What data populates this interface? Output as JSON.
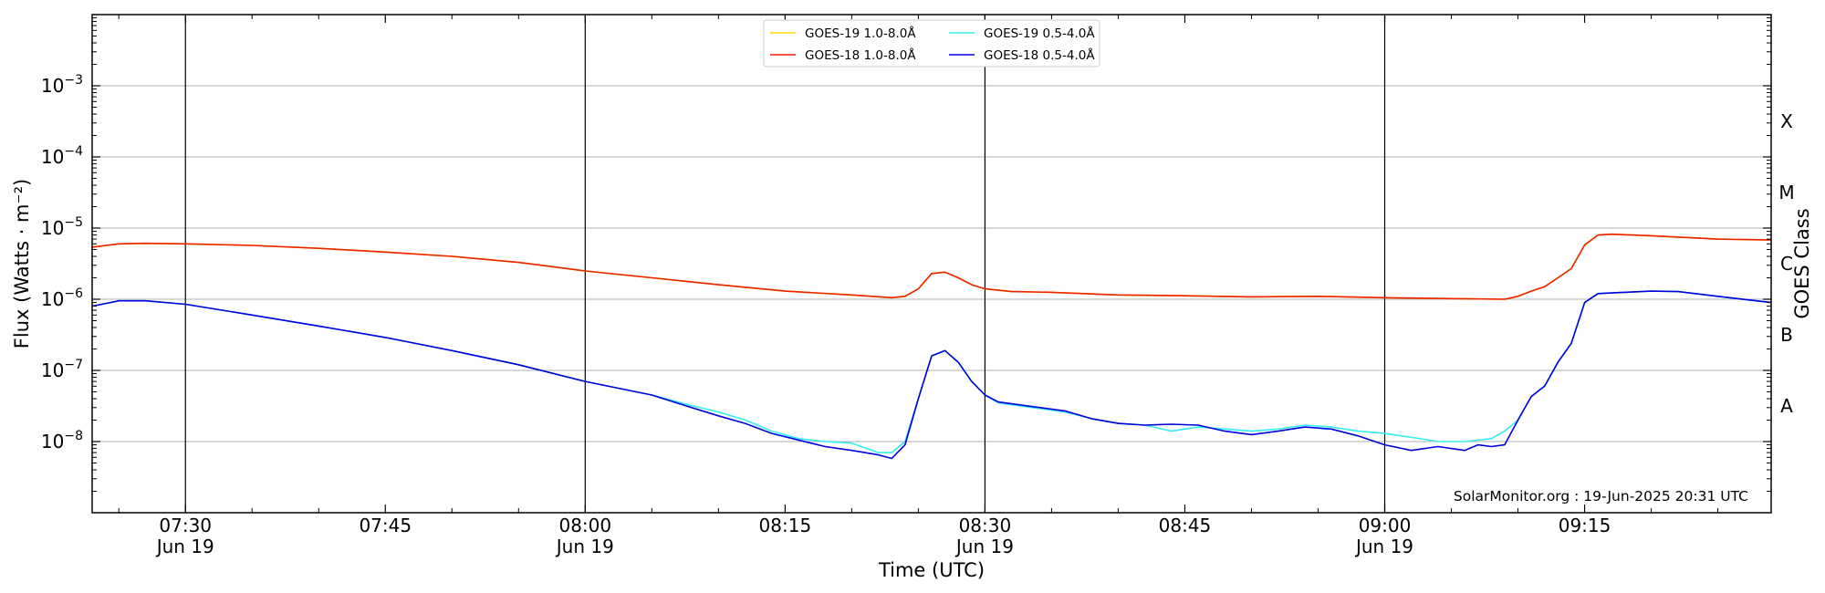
{
  "chart_data": {
    "type": "line",
    "xlabel": "Time (UTC)",
    "ylabel": "Flux (Watts · m⁻²)",
    "ylabel_right": "GOES Class",
    "y_scale": "log",
    "ylim": [
      1e-09,
      0.01
    ],
    "xlim": [
      "2025-06-19T07:23",
      "2025-06-19T09:29"
    ],
    "grid": "horizontal",
    "legend_position": "top-center",
    "credit": "SolarMonitor.org : 19-Jun-2025 20:31 UTC",
    "x_ticks": [
      {
        "time": "07:30",
        "label": "07:30",
        "date": "Jun 19"
      },
      {
        "time": "07:45",
        "label": "07:45",
        "date": ""
      },
      {
        "time": "08:00",
        "label": "08:00",
        "date": "Jun 19"
      },
      {
        "time": "08:15",
        "label": "08:15",
        "date": ""
      },
      {
        "time": "08:30",
        "label": "08:30",
        "date": "Jun 19"
      },
      {
        "time": "08:45",
        "label": "08:45",
        "date": ""
      },
      {
        "time": "09:00",
        "label": "09:00",
        "date": "Jun 19"
      },
      {
        "time": "09:15",
        "label": "09:15",
        "date": ""
      }
    ],
    "y_ticks": [
      {
        "value": 1e-08,
        "base": "10",
        "exp": "−8"
      },
      {
        "value": 1e-07,
        "base": "10",
        "exp": "−7"
      },
      {
        "value": 1e-06,
        "base": "10",
        "exp": "−6"
      },
      {
        "value": 1e-05,
        "base": "10",
        "exp": "−5"
      },
      {
        "value": 0.0001,
        "base": "10",
        "exp": "−4"
      },
      {
        "value": 0.001,
        "base": "10",
        "exp": "−3"
      }
    ],
    "goes_classes": [
      {
        "label": "A",
        "value": 3.16e-08
      },
      {
        "label": "B",
        "value": 3.16e-07
      },
      {
        "label": "C",
        "value": 3.16e-06
      },
      {
        "label": "M",
        "value": 3.16e-05
      },
      {
        "label": "X",
        "value": 0.000316
      }
    ],
    "legend": [
      {
        "label": "GOES-19 1.0-8.0Å",
        "color": "#ffd700"
      },
      {
        "label": "GOES-18 1.0-8.0Å",
        "color": "#ee2200"
      },
      {
        "label": "GOES-19 0.5-4.0Å",
        "color": "#33eeee"
      },
      {
        "label": "GOES-18 0.5-4.0Å",
        "color": "#0000dd"
      }
    ],
    "series": [
      {
        "name": "GOES-19 1.0-8.0Å",
        "color": "#ffd700",
        "points": [
          [
            "07:23",
            5.4e-06
          ],
          [
            "07:25",
            6e-06
          ],
          [
            "07:27",
            6.1e-06
          ],
          [
            "07:30",
            6e-06
          ],
          [
            "07:35",
            5.7e-06
          ],
          [
            "07:40",
            5.2e-06
          ],
          [
            "07:45",
            4.6e-06
          ],
          [
            "07:50",
            4e-06
          ],
          [
            "07:55",
            3.3e-06
          ],
          [
            "08:00",
            2.5e-06
          ],
          [
            "08:05",
            2e-06
          ],
          [
            "08:10",
            1.6e-06
          ],
          [
            "08:15",
            1.3e-06
          ],
          [
            "08:20",
            1.15e-06
          ],
          [
            "08:23",
            1.05e-06
          ],
          [
            "08:24",
            1.1e-06
          ],
          [
            "08:25",
            1.4e-06
          ],
          [
            "08:26",
            2.3e-06
          ],
          [
            "08:27",
            2.4e-06
          ],
          [
            "08:28",
            2e-06
          ],
          [
            "08:29",
            1.6e-06
          ],
          [
            "08:30",
            1.4e-06
          ],
          [
            "08:32",
            1.28e-06
          ],
          [
            "08:35",
            1.25e-06
          ],
          [
            "08:40",
            1.15e-06
          ],
          [
            "08:45",
            1.12e-06
          ],
          [
            "08:50",
            1.08e-06
          ],
          [
            "08:55",
            1.1e-06
          ],
          [
            "09:00",
            1.05e-06
          ],
          [
            "09:05",
            1.02e-06
          ],
          [
            "09:09",
            1e-06
          ],
          [
            "09:10",
            1.1e-06
          ],
          [
            "09:11",
            1.3e-06
          ],
          [
            "09:12",
            1.5e-06
          ],
          [
            "09:13",
            2e-06
          ],
          [
            "09:14",
            2.7e-06
          ],
          [
            "09:15",
            5.8e-06
          ],
          [
            "09:16",
            8e-06
          ],
          [
            "09:17",
            8.2e-06
          ],
          [
            "09:20",
            7.8e-06
          ],
          [
            "09:25",
            7e-06
          ],
          [
            "09:29",
            6.8e-06
          ]
        ]
      },
      {
        "name": "GOES-18 1.0-8.0Å",
        "color": "#ee2200",
        "points": [
          [
            "07:23",
            5.4e-06
          ],
          [
            "07:25",
            6e-06
          ],
          [
            "07:27",
            6.1e-06
          ],
          [
            "07:30",
            6e-06
          ],
          [
            "07:35",
            5.7e-06
          ],
          [
            "07:40",
            5.2e-06
          ],
          [
            "07:45",
            4.6e-06
          ],
          [
            "07:50",
            4e-06
          ],
          [
            "07:55",
            3.3e-06
          ],
          [
            "08:00",
            2.5e-06
          ],
          [
            "08:05",
            2e-06
          ],
          [
            "08:10",
            1.6e-06
          ],
          [
            "08:15",
            1.3e-06
          ],
          [
            "08:20",
            1.15e-06
          ],
          [
            "08:23",
            1.05e-06
          ],
          [
            "08:24",
            1.1e-06
          ],
          [
            "08:25",
            1.4e-06
          ],
          [
            "08:26",
            2.3e-06
          ],
          [
            "08:27",
            2.4e-06
          ],
          [
            "08:28",
            2e-06
          ],
          [
            "08:29",
            1.6e-06
          ],
          [
            "08:30",
            1.4e-06
          ],
          [
            "08:32",
            1.28e-06
          ],
          [
            "08:35",
            1.25e-06
          ],
          [
            "08:40",
            1.15e-06
          ],
          [
            "08:45",
            1.12e-06
          ],
          [
            "08:50",
            1.08e-06
          ],
          [
            "08:55",
            1.1e-06
          ],
          [
            "09:00",
            1.05e-06
          ],
          [
            "09:05",
            1.02e-06
          ],
          [
            "09:09",
            1e-06
          ],
          [
            "09:10",
            1.1e-06
          ],
          [
            "09:11",
            1.3e-06
          ],
          [
            "09:12",
            1.5e-06
          ],
          [
            "09:13",
            2e-06
          ],
          [
            "09:14",
            2.7e-06
          ],
          [
            "09:15",
            5.8e-06
          ],
          [
            "09:16",
            8e-06
          ],
          [
            "09:17",
            8.2e-06
          ],
          [
            "09:20",
            7.8e-06
          ],
          [
            "09:25",
            7e-06
          ],
          [
            "09:29",
            6.8e-06
          ]
        ]
      },
      {
        "name": "GOES-19 0.5-4.0Å",
        "color": "#33eeee",
        "points": [
          [
            "07:23",
            8e-07
          ],
          [
            "07:25",
            9.5e-07
          ],
          [
            "07:27",
            9.5e-07
          ],
          [
            "07:30",
            8.5e-07
          ],
          [
            "07:35",
            6e-07
          ],
          [
            "07:40",
            4.2e-07
          ],
          [
            "07:45",
            2.9e-07
          ],
          [
            "07:50",
            1.9e-07
          ],
          [
            "07:55",
            1.2e-07
          ],
          [
            "08:00",
            7e-08
          ],
          [
            "08:05",
            4.5e-08
          ],
          [
            "08:08",
            3.2e-08
          ],
          [
            "08:10",
            2.6e-08
          ],
          [
            "08:12",
            2e-08
          ],
          [
            "08:14",
            1.4e-08
          ],
          [
            "08:16",
            1.1e-08
          ],
          [
            "08:18",
            1e-08
          ],
          [
            "08:20",
            9.5e-09
          ],
          [
            "08:22",
            7e-09
          ],
          [
            "08:23",
            7e-09
          ],
          [
            "08:24",
            1e-08
          ],
          [
            "08:25",
            4e-08
          ],
          [
            "08:26",
            1.6e-07
          ],
          [
            "08:27",
            1.9e-07
          ],
          [
            "08:28",
            1.3e-07
          ],
          [
            "08:29",
            7e-08
          ],
          [
            "08:30",
            4.5e-08
          ],
          [
            "08:31",
            3.5e-08
          ],
          [
            "08:33",
            3.1e-08
          ],
          [
            "08:36",
            2.6e-08
          ],
          [
            "08:38",
            2.1e-08
          ],
          [
            "08:40",
            1.8e-08
          ],
          [
            "08:42",
            1.7e-08
          ],
          [
            "08:44",
            1.4e-08
          ],
          [
            "08:46",
            1.6e-08
          ],
          [
            "08:48",
            1.5e-08
          ],
          [
            "08:50",
            1.4e-08
          ],
          [
            "08:52",
            1.5e-08
          ],
          [
            "08:54",
            1.7e-08
          ],
          [
            "08:56",
            1.6e-08
          ],
          [
            "08:58",
            1.4e-08
          ],
          [
            "09:00",
            1.3e-08
          ],
          [
            "09:02",
            1.15e-08
          ],
          [
            "09:04",
            1e-08
          ],
          [
            "09:06",
            1e-08
          ],
          [
            "09:08",
            1.1e-08
          ],
          [
            "09:09",
            1.4e-08
          ],
          [
            "09:10",
            2e-08
          ],
          [
            "09:11",
            4.3e-08
          ],
          [
            "09:12",
            6e-08
          ],
          [
            "09:13",
            1.3e-07
          ],
          [
            "09:14",
            2.4e-07
          ],
          [
            "09:15",
            9e-07
          ],
          [
            "09:16",
            1.2e-06
          ],
          [
            "09:18",
            1.25e-06
          ],
          [
            "09:20",
            1.3e-06
          ],
          [
            "09:22",
            1.28e-06
          ],
          [
            "09:25",
            1.1e-06
          ],
          [
            "09:29",
            9e-07
          ]
        ]
      },
      {
        "name": "GOES-18 0.5-4.0Å",
        "color": "#0000dd",
        "points": [
          [
            "07:23",
            8e-07
          ],
          [
            "07:25",
            9.5e-07
          ],
          [
            "07:27",
            9.5e-07
          ],
          [
            "07:30",
            8.5e-07
          ],
          [
            "07:35",
            6e-07
          ],
          [
            "07:40",
            4.2e-07
          ],
          [
            "07:45",
            2.9e-07
          ],
          [
            "07:50",
            1.9e-07
          ],
          [
            "07:55",
            1.2e-07
          ],
          [
            "08:00",
            7e-08
          ],
          [
            "08:05",
            4.5e-08
          ],
          [
            "08:08",
            3e-08
          ],
          [
            "08:10",
            2.3e-08
          ],
          [
            "08:12",
            1.8e-08
          ],
          [
            "08:14",
            1.3e-08
          ],
          [
            "08:16",
            1.05e-08
          ],
          [
            "08:18",
            8.5e-09
          ],
          [
            "08:20",
            7.5e-09
          ],
          [
            "08:22",
            6.5e-09
          ],
          [
            "08:23",
            5.8e-09
          ],
          [
            "08:24",
            9e-09
          ],
          [
            "08:25",
            4e-08
          ],
          [
            "08:26",
            1.6e-07
          ],
          [
            "08:27",
            1.9e-07
          ],
          [
            "08:28",
            1.3e-07
          ],
          [
            "08:29",
            7e-08
          ],
          [
            "08:30",
            4.5e-08
          ],
          [
            "08:31",
            3.6e-08
          ],
          [
            "08:33",
            3.2e-08
          ],
          [
            "08:36",
            2.7e-08
          ],
          [
            "08:38",
            2.1e-08
          ],
          [
            "08:40",
            1.8e-08
          ],
          [
            "08:42",
            1.7e-08
          ],
          [
            "08:44",
            1.75e-08
          ],
          [
            "08:46",
            1.7e-08
          ],
          [
            "08:48",
            1.4e-08
          ],
          [
            "08:50",
            1.25e-08
          ],
          [
            "08:52",
            1.4e-08
          ],
          [
            "08:54",
            1.6e-08
          ],
          [
            "08:56",
            1.5e-08
          ],
          [
            "08:58",
            1.2e-08
          ],
          [
            "09:00",
            9e-09
          ],
          [
            "09:02",
            7.5e-09
          ],
          [
            "09:04",
            8.5e-09
          ],
          [
            "09:06",
            7.5e-09
          ],
          [
            "09:07",
            9e-09
          ],
          [
            "09:08",
            8.5e-09
          ],
          [
            "09:09",
            9e-09
          ],
          [
            "09:10",
            2e-08
          ],
          [
            "09:11",
            4.3e-08
          ],
          [
            "09:12",
            6e-08
          ],
          [
            "09:13",
            1.3e-07
          ],
          [
            "09:14",
            2.4e-07
          ],
          [
            "09:15",
            9e-07
          ],
          [
            "09:16",
            1.2e-06
          ],
          [
            "09:18",
            1.25e-06
          ],
          [
            "09:20",
            1.3e-06
          ],
          [
            "09:22",
            1.28e-06
          ],
          [
            "09:25",
            1.1e-06
          ],
          [
            "09:29",
            9e-07
          ]
        ]
      }
    ]
  }
}
